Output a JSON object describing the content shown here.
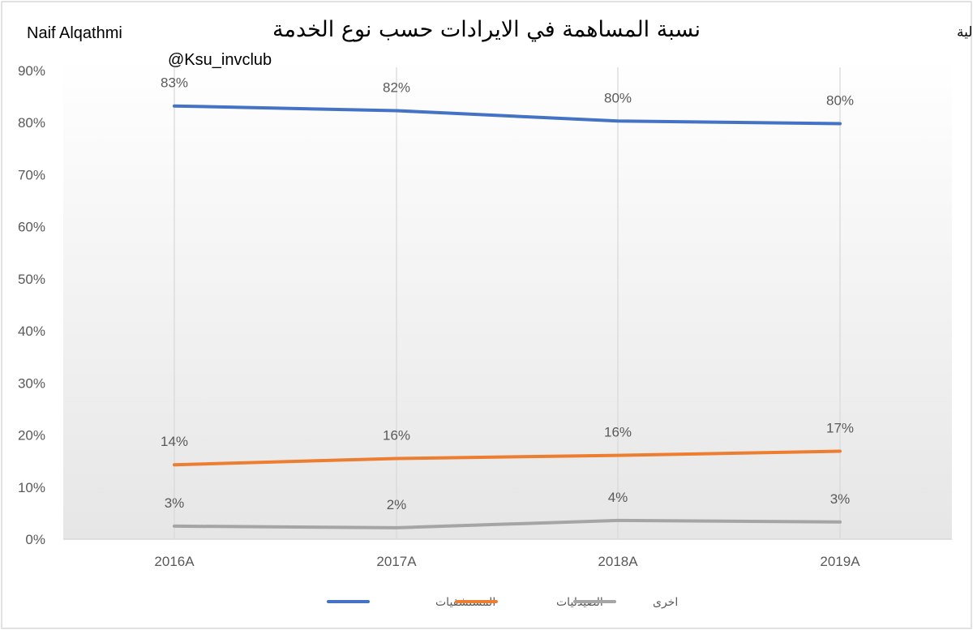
{
  "chart_data": {
    "type": "line",
    "title": "نسبة المساهمة في الايرادات حسب نوع الخدمة",
    "author": "Naif Alqathmi",
    "handle": "@Ksu_invclub",
    "source": "المصدر:القوائم المالية",
    "categories": [
      "2016A",
      "2017A",
      "2018A",
      "2019A"
    ],
    "series": [
      {
        "name": "المستشفيات",
        "values": [
          83.2,
          82.3,
          80.3,
          79.8
        ],
        "labels": [
          "83%",
          "82%",
          "80%",
          "80%"
        ],
        "color": "#4472C4"
      },
      {
        "name": "الصيدليات",
        "values": [
          14.3,
          15.5,
          16.1,
          16.9
        ],
        "labels": [
          "14%",
          "16%",
          "16%",
          "17%"
        ],
        "color": "#ED7D31"
      },
      {
        "name": "اخرى",
        "values": [
          2.5,
          2.2,
          3.6,
          3.3
        ],
        "labels": [
          "3%",
          "2%",
          "4%",
          "3%"
        ],
        "color": "#A5A5A5"
      }
    ],
    "y_ticks": [
      "0%",
      "10%",
      "20%",
      "30%",
      "40%",
      "50%",
      "60%",
      "70%",
      "80%",
      "90%"
    ],
    "ylim": [
      0,
      90
    ],
    "grid": "vertical",
    "legend_position": "bottom"
  }
}
